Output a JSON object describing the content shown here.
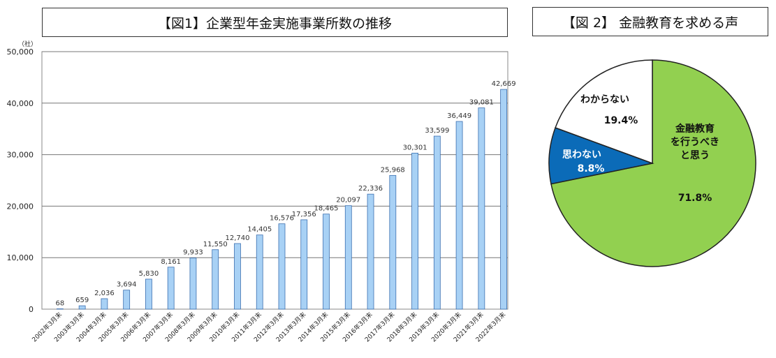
{
  "chart_data": [
    {
      "type": "bar",
      "title": "【図1】企業型年金実施事業所数の推移",
      "ylabel": "（社）",
      "ylim": [
        0,
        50000
      ],
      "yticks": [
        "0",
        "10,000",
        "20,000",
        "30,000",
        "40,000",
        "50,000"
      ],
      "grid": true,
      "categories": [
        "2002年3月末",
        "2003年3月末",
        "2004年3月末",
        "2005年3月末",
        "2006年3月末",
        "2007年3月末",
        "2008年3月末",
        "2009年3月末",
        "2010年3月末",
        "2011年3月末",
        "2012年3月末",
        "2013年3月末",
        "2014年3月末",
        "2015年3月末",
        "2016年3月末",
        "2017年3月末",
        "2018年3月末",
        "2019年3月末",
        "2020年3月末",
        "2021年3月末",
        "2022年3月末"
      ],
      "values": [
        68,
        659,
        2036,
        3694,
        5830,
        8161,
        9933,
        11550,
        12740,
        14405,
        16576,
        17356,
        18465,
        20097,
        22336,
        25968,
        30301,
        33599,
        36449,
        39081,
        42669
      ],
      "labels": [
        "68",
        "659",
        "2,036",
        "3,694",
        "5,830",
        "8,161",
        "9,933",
        "11,550",
        "12,740",
        "14,405",
        "16,576",
        "17,356",
        "18,465",
        "20,097",
        "22,336",
        "25,968",
        "30,301",
        "33,599",
        "36,449",
        "39,081",
        "42,669"
      ],
      "bar_color": "#a8d1f5",
      "bar_border": "#3b6fb0"
    },
    {
      "type": "pie",
      "title": "【図 2】 金融教育を求める声",
      "slices": [
        {
          "label": "金融教育を行うべきと思う",
          "label_lines": [
            "金融教育",
            "を行うべき",
            "と思う"
          ],
          "value": 71.8,
          "value_text": "71.8%",
          "color": "#92d050"
        },
        {
          "label": "思わない",
          "label_lines": [
            "思わない"
          ],
          "value": 8.8,
          "value_text": "8.8%",
          "color": "#0b6bb8"
        },
        {
          "label": "わからない",
          "label_lines": [
            "わからない"
          ],
          "value": 19.4,
          "value_text": "19.4%",
          "color": "#ffffff"
        }
      ]
    }
  ]
}
